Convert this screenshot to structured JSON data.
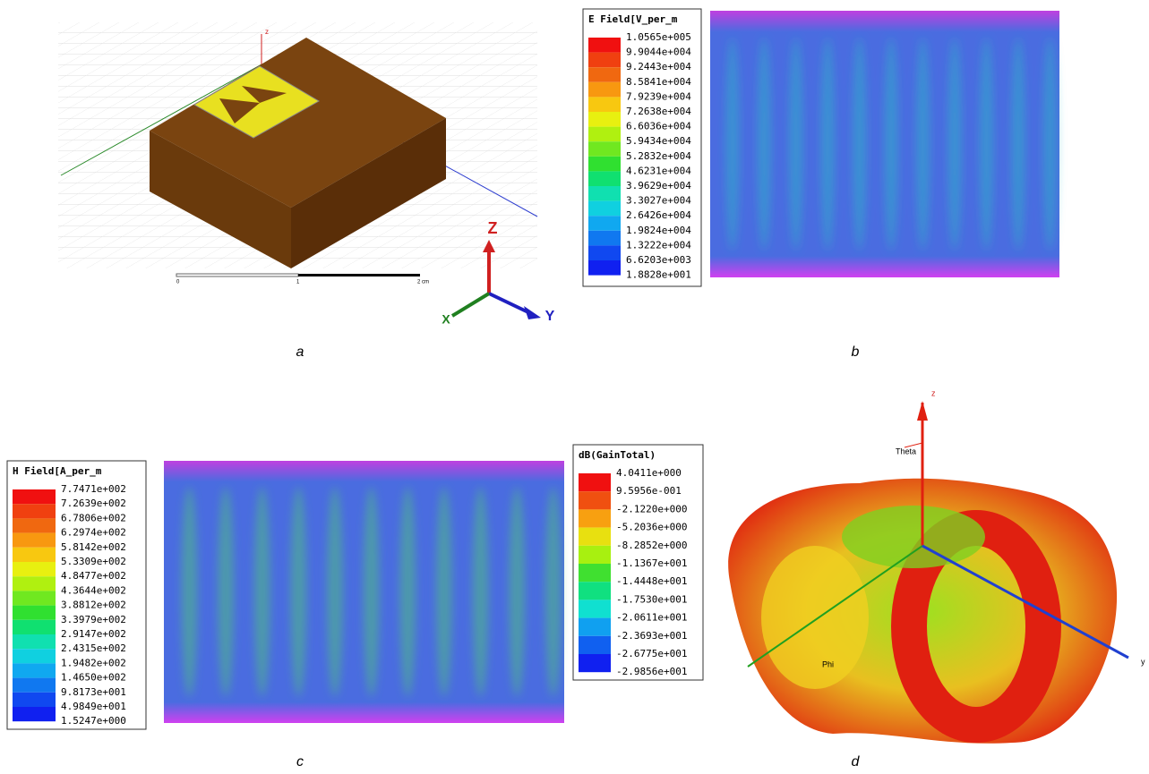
{
  "panels": [
    {
      "label": "a",
      "axis_labels": {
        "z_small": "z",
        "triad_z": "Z",
        "triad_y": "Y",
        "triad_x": "X"
      },
      "scale_labels": [
        "0",
        "1",
        "2 cm"
      ]
    },
    {
      "label": "b",
      "legend": {
        "title": "E Field[V_per_m",
        "entries": [
          "1.0565e+005",
          "9.9044e+004",
          "9.2443e+004",
          "8.5841e+004",
          "7.9239e+004",
          "7.2638e+004",
          "6.6036e+004",
          "5.9434e+004",
          "5.2832e+004",
          "4.6231e+004",
          "3.9629e+004",
          "3.3027e+004",
          "2.6426e+004",
          "1.9824e+004",
          "1.3222e+004",
          "6.6203e+003",
          "1.8828e+001"
        ]
      }
    },
    {
      "label": "c",
      "legend": {
        "title": "H Field[A_per_m",
        "entries": [
          "7.7471e+002",
          "7.2639e+002",
          "6.7806e+002",
          "6.2974e+002",
          "5.8142e+002",
          "5.3309e+002",
          "4.8477e+002",
          "4.3644e+002",
          "3.8812e+002",
          "3.3979e+002",
          "2.9147e+002",
          "2.4315e+002",
          "1.9482e+002",
          "1.4650e+002",
          "9.8173e+001",
          "4.9849e+001",
          "1.5247e+000"
        ]
      }
    },
    {
      "label": "d",
      "legend": {
        "title": "dB(GainTotal)",
        "entries": [
          "4.0411e+000",
          "9.5956e-001",
          "-2.1220e+000",
          "-5.2036e+000",
          "-8.2852e+000",
          "-1.1367e+001",
          "-1.4448e+001",
          "-1.7530e+001",
          "-2.0611e+001",
          "-2.3693e+001",
          "-2.6775e+001",
          "-2.9856e+001"
        ]
      },
      "axis_labels": {
        "z": "z",
        "theta": "Theta",
        "phi": "Phi",
        "y": "y"
      }
    }
  ]
}
